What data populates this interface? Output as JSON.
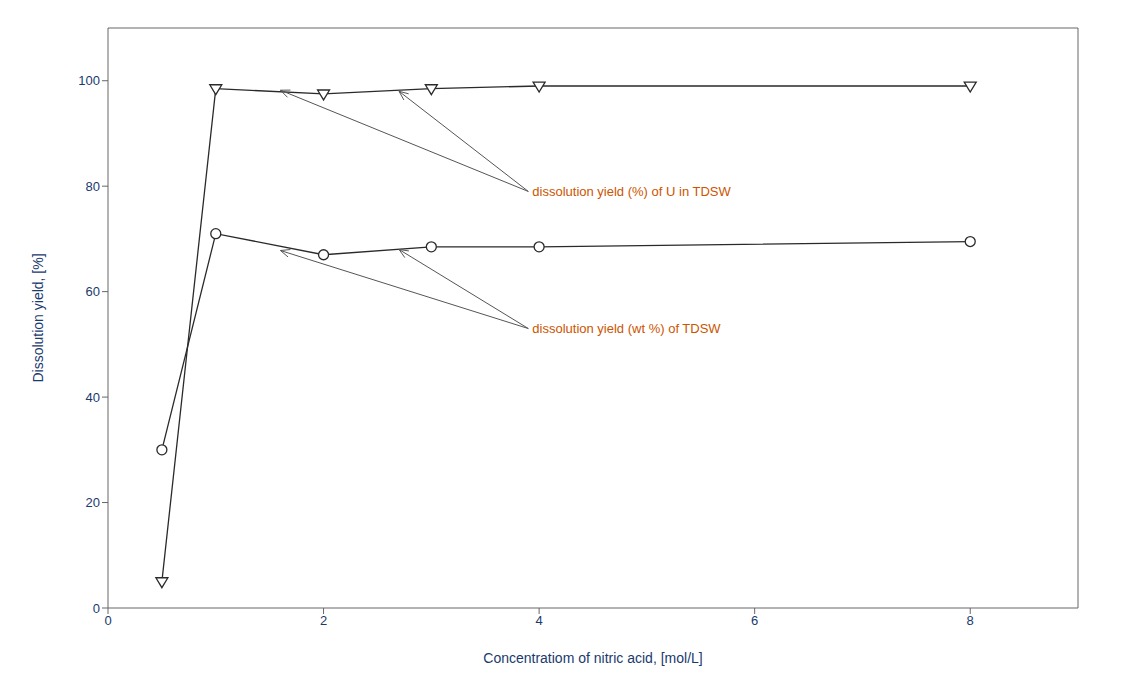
{
  "chart_data": {
    "type": "line",
    "xlabel": "Concentratiom of nitric acid, [mol/L]",
    "ylabel": "Dissolution yield, [%]",
    "x": [
      0.5,
      1.0,
      2.0,
      3.0,
      4.0,
      8.0
    ],
    "series": [
      {
        "color": "#2a2a2a",
        "marker": "circle",
        "values": [
          30.0,
          71.0,
          67.0,
          68.5,
          68.5,
          69.5
        ]
      },
      {
        "color": "#2a2a2a",
        "marker": "triangle-down",
        "values": [
          5.0,
          98.5,
          97.5,
          98.5,
          99.0,
          99.0
        ]
      }
    ],
    "xlim": [
      0,
      9
    ],
    "xticks": [
      0,
      2,
      4,
      6,
      8
    ],
    "ylim": [
      0,
      110
    ],
    "yticks": [
      0,
      20,
      40,
      60,
      80,
      100
    ],
    "grid": false,
    "annotations": [
      {
        "text": "dissolution yield (%) of U in TDSW",
        "color": "#cc5500",
        "x": 3.9,
        "y": 79.0,
        "arrows": [
          {
            "x": 1.6,
            "y": 98.2
          },
          {
            "x": 2.7,
            "y": 98.0
          }
        ]
      },
      {
        "text": "dissolution yield (wt %) of TDSW",
        "color": "#cc5500",
        "x": 3.9,
        "y": 53.0,
        "arrows": [
          {
            "x": 1.6,
            "y": 67.8
          },
          {
            "x": 2.7,
            "y": 68.0
          }
        ]
      }
    ]
  }
}
